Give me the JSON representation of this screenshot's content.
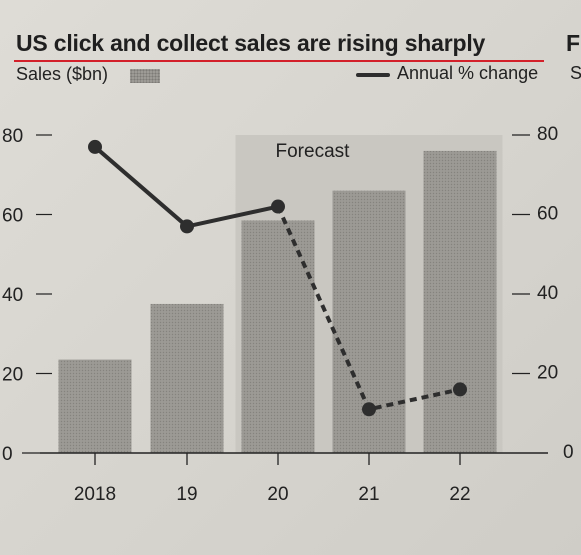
{
  "chart_data": {
    "type": "bar",
    "title": "US click and collect sales are rising sharply",
    "categories": [
      "2018",
      "19",
      "20",
      "21",
      "22"
    ],
    "series": [
      {
        "name": "Sales ($bn)",
        "type": "bar",
        "axis": "left",
        "values": [
          23.5,
          37.5,
          58.5,
          66,
          76
        ]
      },
      {
        "name": "Annual % change",
        "type": "line",
        "axis": "right",
        "values": [
          77,
          57,
          62,
          11,
          16
        ],
        "forecast_from_index": 2
      }
    ],
    "y_left": {
      "ylim": [
        0,
        80
      ],
      "ticks": [
        0,
        20,
        40,
        60,
        80
      ]
    },
    "y_right": {
      "ylim": [
        0,
        80
      ],
      "ticks": [
        0,
        20,
        40,
        60,
        80
      ]
    },
    "forecast_region": {
      "from_category_index": 2,
      "to_category_index": 4,
      "label": "Forecast"
    },
    "grid": false,
    "legend_placement": "top"
  },
  "colors": {
    "bars": "#9c9a95",
    "forecast_shade": "#c9c7c1",
    "line": "#2e2e2e",
    "title_rule": "#d3202a"
  },
  "header": {
    "clipped_next_title": "F",
    "clipped_legend": "S"
  }
}
